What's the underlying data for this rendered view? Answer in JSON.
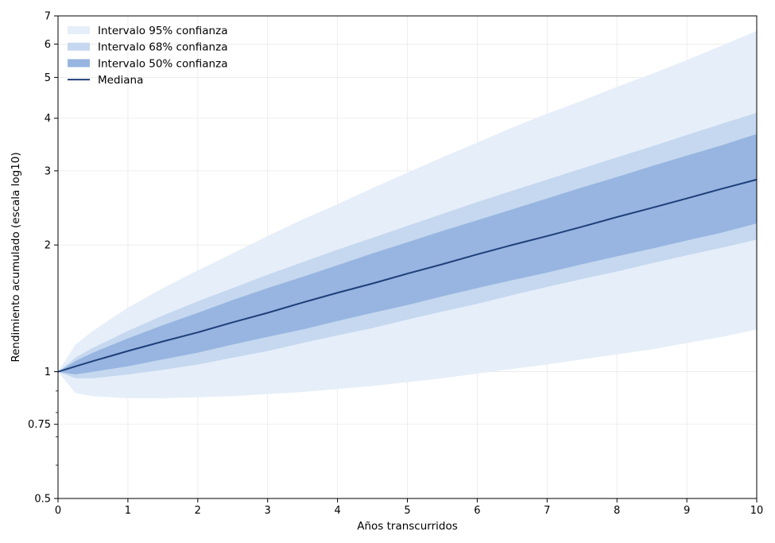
{
  "chart_data": {
    "type": "area",
    "title": "",
    "xlabel": "Años transcurridos",
    "ylabel": "Rendimiento acumulado (escala log10)",
    "yscale": "log10",
    "xlim": [
      0,
      10
    ],
    "ylim": [
      0.5,
      7
    ],
    "grid": true,
    "legend_position": "top-left",
    "x_ticks": [
      0,
      1,
      2,
      3,
      4,
      5,
      6,
      7,
      8,
      9,
      10
    ],
    "x_tick_labels": [
      "0",
      "1",
      "2",
      "3",
      "4",
      "5",
      "6",
      "7",
      "8",
      "9",
      "10"
    ],
    "y_ticks": [
      0.5,
      0.75,
      1,
      2,
      3,
      4,
      5,
      6,
      7
    ],
    "y_tick_labels": [
      "0.5",
      "0.75",
      "1",
      "2",
      "3",
      "4",
      "5",
      "6",
      "7"
    ],
    "x": [
      0,
      0.25,
      0.5,
      1,
      1.5,
      2,
      2.5,
      3,
      3.5,
      4,
      4.5,
      5,
      5.5,
      6,
      6.5,
      7,
      7.5,
      8,
      8.5,
      9,
      9.5,
      10
    ],
    "bands": [
      {
        "name": "Intervalo 95% confianza",
        "color": "#e6eef9",
        "lower": [
          1.0,
          0.89,
          0.875,
          0.865,
          0.865,
          0.87,
          0.875,
          0.885,
          0.895,
          0.91,
          0.925,
          0.945,
          0.965,
          0.99,
          1.015,
          1.04,
          1.07,
          1.1,
          1.13,
          1.17,
          1.21,
          1.26
        ],
        "upper": [
          1.0,
          1.16,
          1.25,
          1.42,
          1.58,
          1.74,
          1.91,
          2.1,
          2.3,
          2.5,
          2.73,
          2.97,
          3.23,
          3.5,
          3.8,
          4.1,
          4.4,
          4.75,
          5.1,
          5.5,
          5.95,
          6.45
        ]
      },
      {
        "name": "Intervalo 68% confianza",
        "color": "#c5d8ef",
        "lower": [
          1.0,
          0.965,
          0.965,
          0.985,
          1.01,
          1.04,
          1.08,
          1.12,
          1.17,
          1.22,
          1.27,
          1.33,
          1.39,
          1.45,
          1.52,
          1.59,
          1.66,
          1.73,
          1.81,
          1.89,
          1.97,
          2.06
        ],
        "upper": [
          1.0,
          1.08,
          1.14,
          1.25,
          1.36,
          1.47,
          1.58,
          1.7,
          1.82,
          1.95,
          2.08,
          2.22,
          2.37,
          2.53,
          2.69,
          2.86,
          3.04,
          3.23,
          3.43,
          3.65,
          3.88,
          4.12
        ]
      },
      {
        "name": "Intervalo 50% confianza",
        "color": "#97b5e0",
        "lower": [
          1.0,
          0.985,
          1.0,
          1.03,
          1.07,
          1.11,
          1.16,
          1.21,
          1.26,
          1.32,
          1.38,
          1.44,
          1.51,
          1.58,
          1.65,
          1.72,
          1.8,
          1.88,
          1.96,
          2.05,
          2.14,
          2.25
        ],
        "upper": [
          1.0,
          1.06,
          1.11,
          1.2,
          1.29,
          1.38,
          1.48,
          1.58,
          1.68,
          1.79,
          1.91,
          2.03,
          2.16,
          2.29,
          2.43,
          2.58,
          2.74,
          2.9,
          3.08,
          3.26,
          3.45,
          3.67
        ]
      }
    ],
    "series": [
      {
        "name": "Mediana",
        "color": "#1f3f7a",
        "values": [
          1.0,
          1.03,
          1.06,
          1.12,
          1.18,
          1.24,
          1.31,
          1.38,
          1.46,
          1.54,
          1.62,
          1.71,
          1.8,
          1.9,
          2.0,
          2.1,
          2.21,
          2.33,
          2.45,
          2.58,
          2.72,
          2.86
        ]
      }
    ],
    "legend": [
      "Intervalo 95% confianza",
      "Intervalo 68% confianza",
      "Intervalo 50% confianza",
      "Mediana"
    ]
  }
}
